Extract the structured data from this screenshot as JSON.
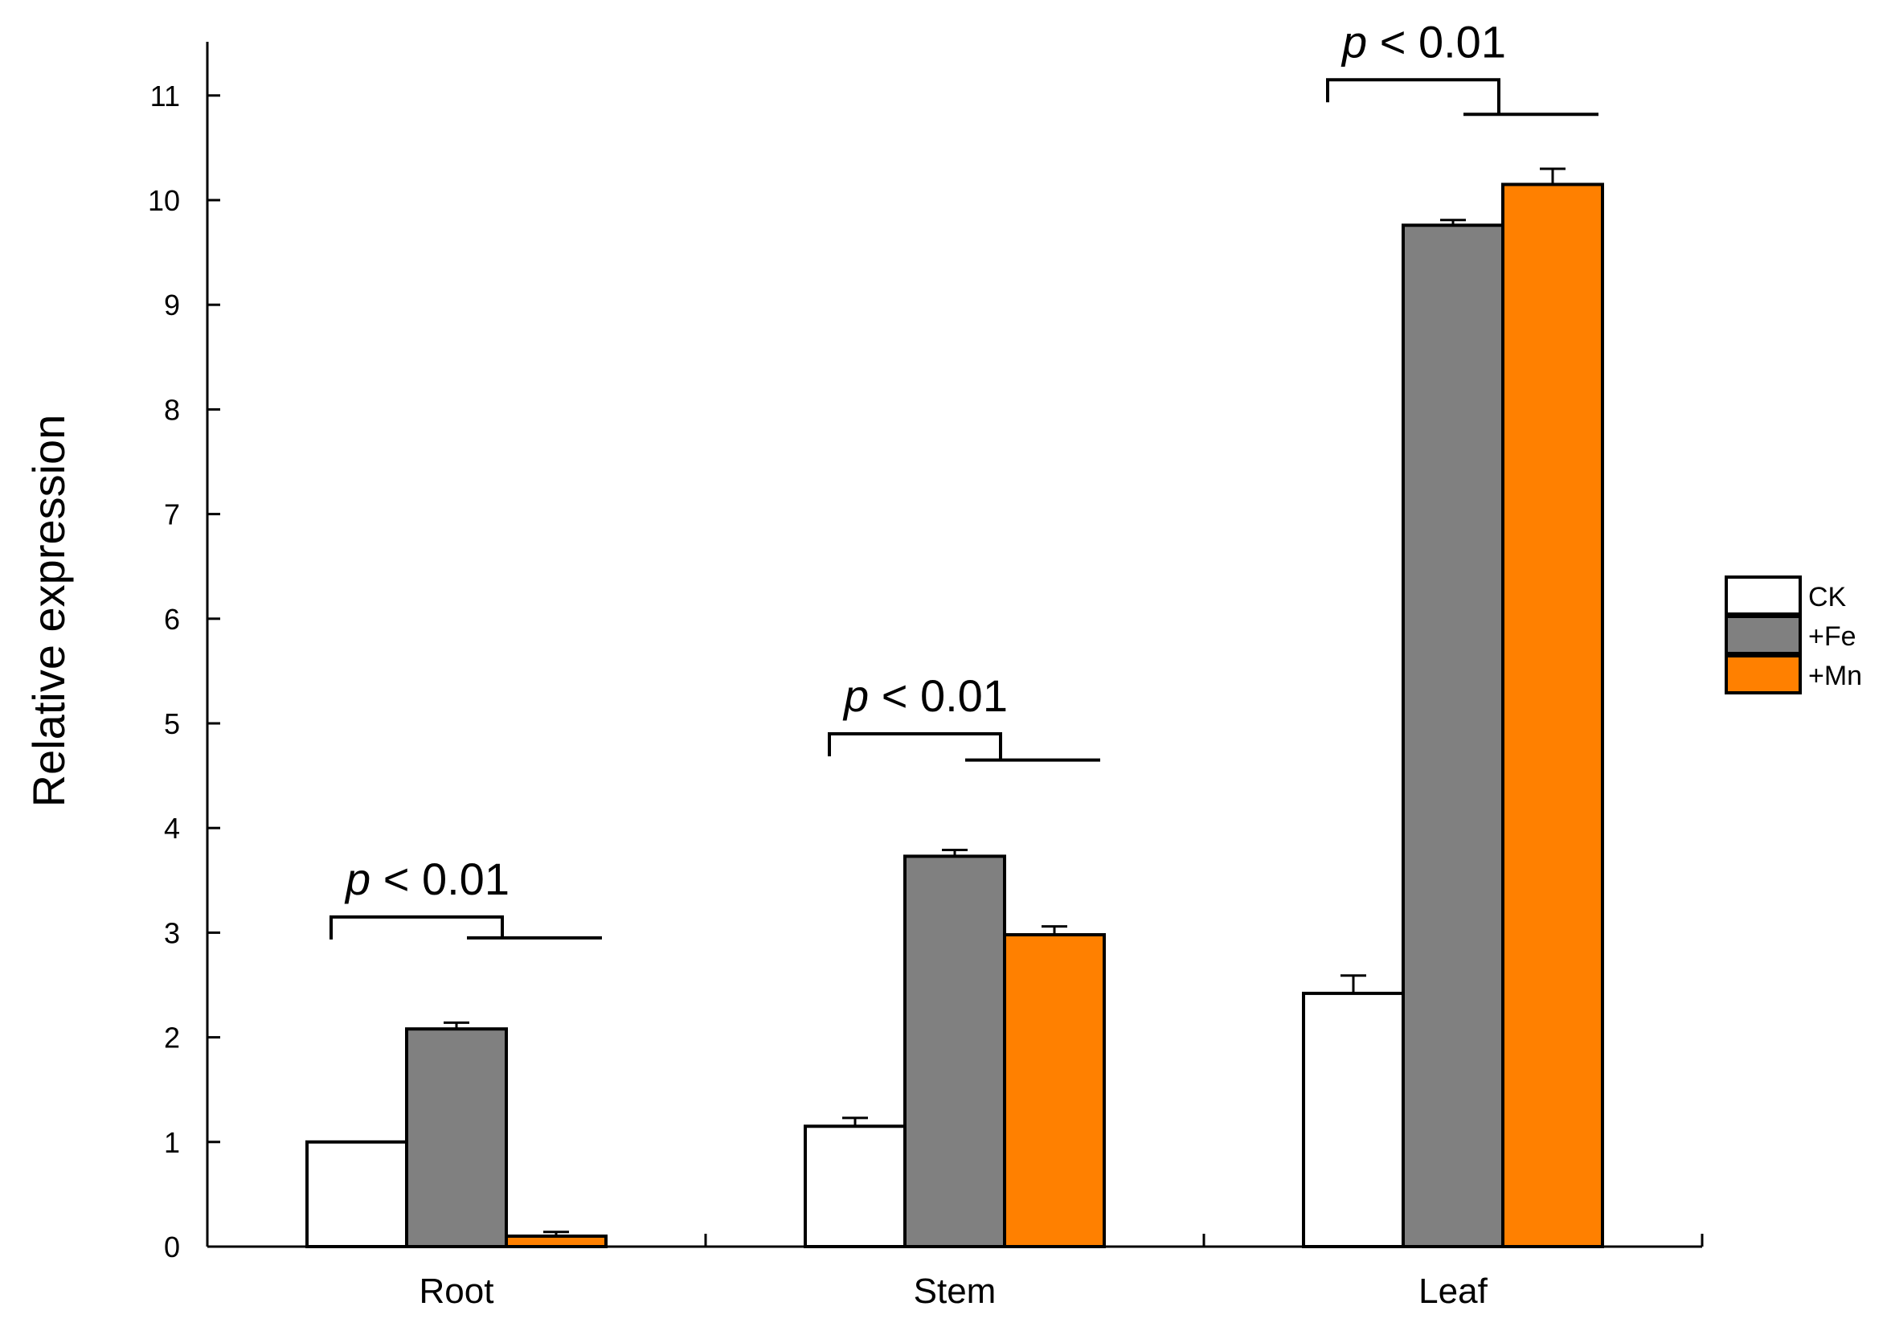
{
  "chart_data": {
    "type": "bar",
    "ylabel": "Relative expression",
    "xlabel": "",
    "title": "",
    "ylim": [
      0,
      11.5
    ],
    "yticks": [
      0,
      1,
      2,
      3,
      4,
      5,
      6,
      7,
      8,
      9,
      10,
      11
    ],
    "categories": [
      "Root",
      "Stem",
      "Leaf"
    ],
    "series": [
      {
        "name": "CK",
        "color": "#ffffff",
        "values": [
          1.0,
          1.15,
          2.42
        ],
        "errors": [
          0.0,
          0.08,
          0.17
        ]
      },
      {
        "name": "+Fe",
        "color": "#808080",
        "values": [
          2.08,
          3.73,
          9.76
        ],
        "errors": [
          0.06,
          0.06,
          0.05
        ]
      },
      {
        "name": "+Mn",
        "color": "#ff8000",
        "values": [
          0.1,
          2.98,
          10.15
        ],
        "errors": [
          0.04,
          0.08,
          0.15
        ]
      }
    ],
    "annotations": [
      {
        "category": "Root",
        "text": "p < 0.01",
        "bracket_top": 3.15,
        "bracket_right_low": 2.95
      },
      {
        "category": "Stem",
        "text": "p < 0.01",
        "bracket_top": 4.9,
        "bracket_right_low": 4.65
      },
      {
        "category": "Leaf",
        "text": "p < 0.01",
        "bracket_top": 11.15,
        "bracket_right_low": 10.82
      }
    ],
    "legend": {
      "placement": "right"
    },
    "grid": false
  }
}
